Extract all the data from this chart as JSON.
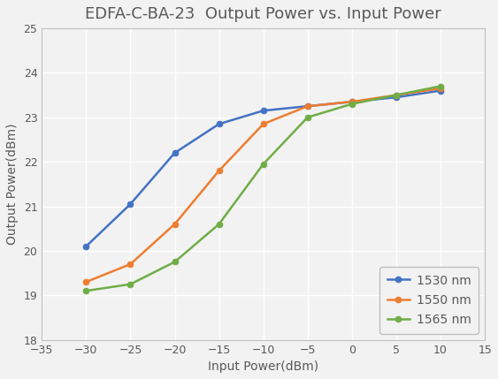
{
  "title": "EDFA-C-BA-23  Output Power vs. Input Power",
  "xlabel": "Input Power(dBm)",
  "ylabel": "Output Power(dBm)",
  "xlim": [
    -35,
    15
  ],
  "ylim": [
    18,
    25
  ],
  "xticks": [
    -35,
    -30,
    -25,
    -20,
    -15,
    -10,
    -5,
    0,
    5,
    10,
    15
  ],
  "yticks": [
    18,
    19,
    20,
    21,
    22,
    23,
    24,
    25
  ],
  "series": [
    {
      "label": "1530 nm",
      "x": [
        -30,
        -25,
        -20,
        -15,
        -10,
        -5,
        0,
        5,
        10
      ],
      "y": [
        20.1,
        21.05,
        22.2,
        22.85,
        23.15,
        23.25,
        23.35,
        23.45,
        23.6
      ],
      "color": "#4472C4",
      "marker": "o",
      "markersize": 5
    },
    {
      "label": "1550 nm",
      "x": [
        -30,
        -25,
        -20,
        -15,
        -10,
        -5,
        0,
        5,
        10
      ],
      "y": [
        19.3,
        19.7,
        20.6,
        21.8,
        22.85,
        23.25,
        23.35,
        23.5,
        23.65
      ],
      "color": "#ED7D31",
      "marker": "o",
      "markersize": 5
    },
    {
      "label": "1565 nm",
      "x": [
        -30,
        -25,
        -20,
        -15,
        -10,
        -5,
        0,
        5,
        10
      ],
      "y": [
        19.1,
        19.25,
        19.75,
        20.6,
        21.95,
        23.0,
        23.3,
        23.5,
        23.7
      ],
      "color": "#70AD47",
      "marker": "o",
      "markersize": 5
    }
  ],
  "fig_bg_color": "#F2F2F2",
  "plot_bg_color": "#F2F2F2",
  "grid_color": "#FFFFFF",
  "title_color": "#595959",
  "axis_label_color": "#595959",
  "tick_color": "#595959",
  "title_fontsize": 13,
  "axis_label_fontsize": 10,
  "tick_fontsize": 9,
  "legend_fontsize": 10,
  "spine_color": "#BFBFBF"
}
